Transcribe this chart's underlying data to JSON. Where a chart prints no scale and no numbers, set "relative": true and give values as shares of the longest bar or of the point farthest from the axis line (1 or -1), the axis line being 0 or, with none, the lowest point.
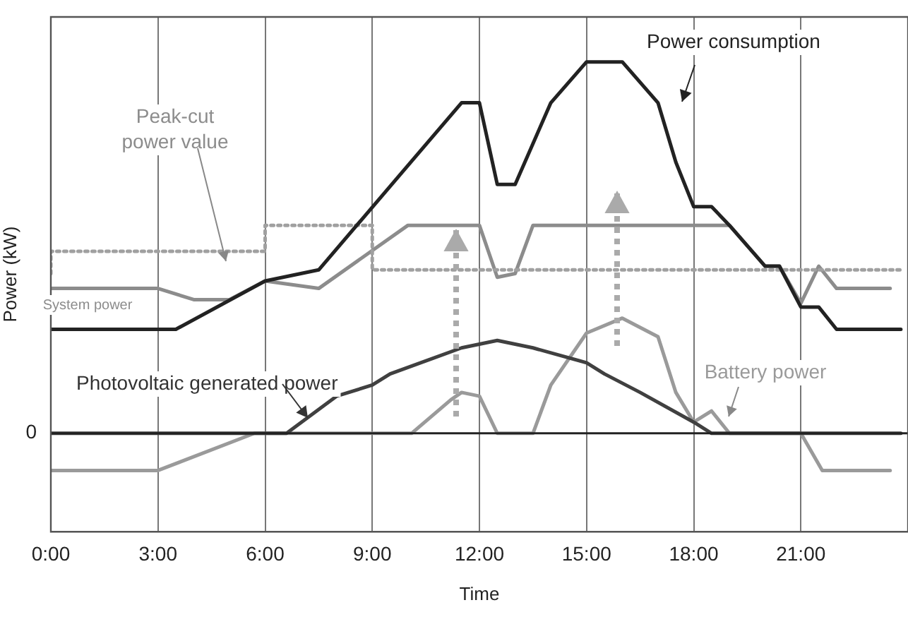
{
  "chart_data": {
    "type": "line",
    "xlabel": "Time",
    "ylabel": "Power (kW)",
    "relative": true,
    "xlim": [
      0,
      24
    ],
    "xticks": [
      {
        "value": 0,
        "label": "0:00"
      },
      {
        "value": 3,
        "label": "3:00"
      },
      {
        "value": 6,
        "label": "6:00"
      },
      {
        "value": 9,
        "label": "9:00"
      },
      {
        "value": 12,
        "label": "12:00"
      },
      {
        "value": 15,
        "label": "15:00"
      },
      {
        "value": 18,
        "label": "18:00"
      },
      {
        "value": 21,
        "label": "21:00"
      }
    ],
    "grid": "x",
    "legend": false,
    "marker": "none",
    "ref_lines": [
      {
        "axis": "y",
        "value": 0,
        "label": "0",
        "color": "#222222"
      }
    ],
    "series": [
      {
        "name": "Power consumption",
        "color": "#222222",
        "x": [
          0,
          3,
          3.5,
          6,
          7.5,
          11.5,
          12,
          12.5,
          13,
          14,
          15,
          16,
          17,
          17.5,
          18,
          18.5,
          19,
          20,
          20.4,
          21,
          21.5,
          22,
          23.8
        ],
        "values": [
          0.28,
          0.28,
          0.28,
          0.41,
          0.44,
          0.89,
          0.89,
          0.67,
          0.67,
          0.89,
          1.0,
          1.0,
          0.89,
          0.73,
          0.61,
          0.61,
          0.56,
          0.45,
          0.45,
          0.34,
          0.34,
          0.28,
          0.28
        ]
      },
      {
        "name": "Peak-cut power value",
        "type": "step",
        "line_style": "dotted",
        "color": "#a0a0a0",
        "x": [
          0,
          6,
          9,
          21,
          23.8
        ],
        "values": [
          0.43,
          0.49,
          0.56,
          0.44,
          0.44
        ]
      },
      {
        "name": "System power",
        "color": "#8c8c8c",
        "x": [
          0,
          3,
          4,
          5,
          6,
          7.5,
          10,
          12,
          12.5,
          13,
          13.5,
          19,
          20,
          20.4,
          21,
          21.5,
          22,
          23.5
        ],
        "values": [
          0.39,
          0.39,
          0.36,
          0.36,
          0.41,
          0.39,
          0.56,
          0.56,
          0.42,
          0.43,
          0.56,
          0.56,
          0.45,
          0.45,
          0.35,
          0.45,
          0.39,
          0.39
        ]
      },
      {
        "name": "Photovoltaic generated power",
        "color": "#404040",
        "x": [
          0,
          6.6,
          8,
          9,
          9.5,
          11.5,
          12.5,
          13.5,
          15,
          15.5,
          16.5,
          18,
          18.5,
          23.8
        ],
        "values": [
          0,
          0,
          0.1,
          0.13,
          0.16,
          0.23,
          0.25,
          0.23,
          0.19,
          0.16,
          0.11,
          0.03,
          0,
          0
        ]
      },
      {
        "name": "Battery power",
        "color": "#9a9a9a",
        "x": [
          0,
          3,
          5.7,
          10.1,
          11.2,
          11.5,
          12,
          12.5,
          13.5,
          14,
          15,
          16,
          17,
          17.5,
          18,
          18.5,
          19,
          21,
          21.6,
          23.5
        ],
        "values": [
          -0.1,
          -0.1,
          0,
          0,
          0.09,
          0.11,
          0.1,
          0,
          0,
          0.13,
          0.27,
          0.31,
          0.26,
          0.11,
          0.03,
          0.06,
          0,
          0,
          -0.1,
          -0.1
        ]
      }
    ]
  }
}
